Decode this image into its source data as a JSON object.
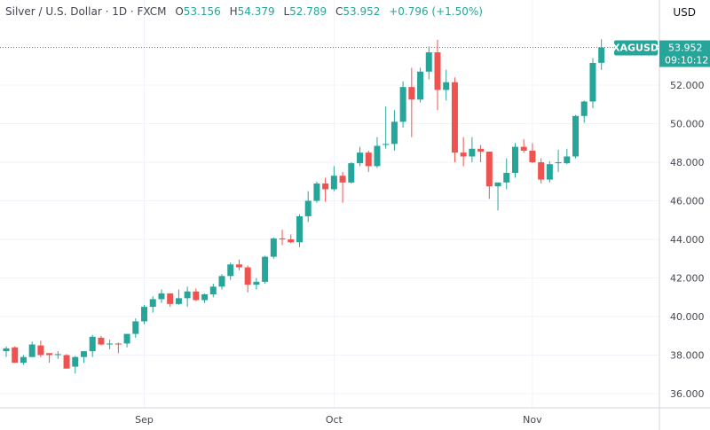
{
  "header": {
    "symbol_title": "Silver / U.S. Dollar · 1D · FXCM",
    "open_label": "O",
    "open": "53.156",
    "high_label": "H",
    "high": "54.379",
    "low_label": "L",
    "low": "52.789",
    "close_label": "C",
    "close": "53.952",
    "change": "+0.796 (+1.50%)"
  },
  "price_axis": {
    "currency": "USD"
  },
  "last_price": {
    "symbol": "XAGUSD",
    "price": "53.952",
    "countdown": "09:10:12"
  },
  "colors": {
    "up": "#26a69a",
    "down": "#ef5350",
    "grid": "#f0f3fa",
    "text": "#434651"
  },
  "chart_data": {
    "type": "candlestick",
    "title": "Silver / U.S. Dollar · 1D · FXCM",
    "ylim": [
      35.26,
      56.4
    ],
    "grid": true,
    "yticks": [
      "36.000",
      "38.000",
      "40.000",
      "42.000",
      "44.000",
      "46.000",
      "48.000",
      "50.000",
      "52.000"
    ],
    "xticks": [
      {
        "label": "Sep",
        "index": 16
      },
      {
        "label": "Oct",
        "index": 38
      },
      {
        "label": "Nov",
        "index": 61
      }
    ],
    "ohlc_fields": [
      "open",
      "high",
      "low",
      "close"
    ],
    "ohlc": [
      [
        38.2,
        38.45,
        37.9,
        38.35
      ],
      [
        38.4,
        38.45,
        37.6,
        37.6
      ],
      [
        37.6,
        38.0,
        37.5,
        37.9
      ],
      [
        37.9,
        38.7,
        37.9,
        38.55
      ],
      [
        38.5,
        38.75,
        37.9,
        38.0
      ],
      [
        38.1,
        38.1,
        37.6,
        38.0
      ],
      [
        38.0,
        38.2,
        37.8,
        38.05
      ],
      [
        38.0,
        38.05,
        37.3,
        37.3
      ],
      [
        37.4,
        37.95,
        37.05,
        37.9
      ],
      [
        37.9,
        38.2,
        37.6,
        38.2
      ],
      [
        38.2,
        39.05,
        37.9,
        38.95
      ],
      [
        38.9,
        39.0,
        38.5,
        38.55
      ],
      [
        38.55,
        38.8,
        38.3,
        38.6
      ],
      [
        38.6,
        38.65,
        38.1,
        38.55
      ],
      [
        38.6,
        39.1,
        38.4,
        39.1
      ],
      [
        39.1,
        39.9,
        38.9,
        39.75
      ],
      [
        39.75,
        40.6,
        39.6,
        40.5
      ],
      [
        40.5,
        41.05,
        40.2,
        40.9
      ],
      [
        40.9,
        41.4,
        40.7,
        41.2
      ],
      [
        41.2,
        41.2,
        40.5,
        40.65
      ],
      [
        40.65,
        41.4,
        40.6,
        40.95
      ],
      [
        40.95,
        41.55,
        40.5,
        41.3
      ],
      [
        41.3,
        41.45,
        40.8,
        40.85
      ],
      [
        40.85,
        41.2,
        40.7,
        41.15
      ],
      [
        41.15,
        41.7,
        41.0,
        41.55
      ],
      [
        41.55,
        42.2,
        41.4,
        42.1
      ],
      [
        42.1,
        42.8,
        41.9,
        42.7
      ],
      [
        42.7,
        42.95,
        42.4,
        42.55
      ],
      [
        42.55,
        42.65,
        41.25,
        41.65
      ],
      [
        41.65,
        42.0,
        41.4,
        41.8
      ],
      [
        41.8,
        43.15,
        41.7,
        43.1
      ],
      [
        43.1,
        44.1,
        43.0,
        44.05
      ],
      [
        44.05,
        44.5,
        43.7,
        44.0
      ],
      [
        44.0,
        44.25,
        43.8,
        43.85
      ],
      [
        43.85,
        45.3,
        43.6,
        45.2
      ],
      [
        45.2,
        46.5,
        44.9,
        46.0
      ],
      [
        46.0,
        47.0,
        45.9,
        46.9
      ],
      [
        46.9,
        47.2,
        45.95,
        46.6
      ],
      [
        46.6,
        47.8,
        46.5,
        47.3
      ],
      [
        47.3,
        47.5,
        45.9,
        46.95
      ],
      [
        46.95,
        48.0,
        46.9,
        47.95
      ],
      [
        47.95,
        48.8,
        47.8,
        48.5
      ],
      [
        48.5,
        48.6,
        47.5,
        47.8
      ],
      [
        47.8,
        49.3,
        47.7,
        48.85
      ],
      [
        48.9,
        50.9,
        48.7,
        48.95
      ],
      [
        48.95,
        50.7,
        48.6,
        50.1
      ],
      [
        50.1,
        52.2,
        49.8,
        51.9
      ],
      [
        51.9,
        52.9,
        49.3,
        51.25
      ],
      [
        51.25,
        52.9,
        51.1,
        52.7
      ],
      [
        52.7,
        54.0,
        52.3,
        53.7
      ],
      [
        53.7,
        54.35,
        50.7,
        51.75
      ],
      [
        51.75,
        52.8,
        51.2,
        52.15
      ],
      [
        52.15,
        52.4,
        48.0,
        48.5
      ],
      [
        48.5,
        49.3,
        47.8,
        48.3
      ],
      [
        48.3,
        49.3,
        48.0,
        48.7
      ],
      [
        48.7,
        48.9,
        48.0,
        48.55
      ],
      [
        48.55,
        48.55,
        46.1,
        46.75
      ],
      [
        46.75,
        46.95,
        45.5,
        46.95
      ],
      [
        46.95,
        48.2,
        46.6,
        47.45
      ],
      [
        47.45,
        49.0,
        47.2,
        48.8
      ],
      [
        48.8,
        49.2,
        48.5,
        48.6
      ],
      [
        48.6,
        49.0,
        47.95,
        48.0
      ],
      [
        48.0,
        48.2,
        46.9,
        47.1
      ],
      [
        47.1,
        48.05,
        46.95,
        47.9
      ],
      [
        47.95,
        48.65,
        47.5,
        48.0
      ],
      [
        47.95,
        48.7,
        47.9,
        48.3
      ],
      [
        48.3,
        50.45,
        48.2,
        50.4
      ],
      [
        50.4,
        51.2,
        50.05,
        51.15
      ],
      [
        51.15,
        53.4,
        50.8,
        53.15
      ],
      [
        53.156,
        54.379,
        52.789,
        53.952
      ]
    ]
  }
}
